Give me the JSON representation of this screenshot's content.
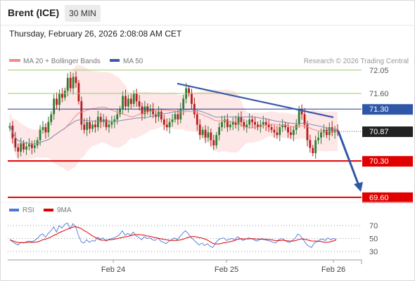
{
  "header": {
    "instrument": "Brent (ICE)",
    "timeframe": "30 MIN",
    "datetime": "Thursday, February 26, 2026 2:08:08 AM CET"
  },
  "legend": {
    "ma20_label": "MA 20 + Bollinger Bands",
    "ma50_label": "MA 50",
    "credit": "Research © 2026 Trading Central",
    "rsi_label": "RSI",
    "ma9_label": "9MA"
  },
  "colors": {
    "up_candle": "#2e7d32",
    "down_candle": "#b71c1c",
    "bollinger_fill": "#fde3e3",
    "ma20": "#f28b82",
    "ma50": "#7a8fb5",
    "trendline": "#3b5ba9",
    "resistance": "#1f3f8f",
    "support": "#e00000",
    "last_price_bg": "#222222",
    "rsi_line": "#4a78d9",
    "rsi_ma": "#e00000",
    "green_level": "#9ccc65"
  },
  "chart_data": [
    {
      "type": "candlestick",
      "x_ticks": [
        "Feb 24",
        "Feb 25",
        "Feb 26"
      ],
      "y_levels": [
        {
          "value": 72.05,
          "label": "72.05",
          "style": "green-line"
        },
        {
          "value": 71.6,
          "label": "71.60",
          "style": "green-line"
        },
        {
          "value": 71.3,
          "label": "71.30",
          "style": "blue-resistance"
        },
        {
          "value": 70.87,
          "label": "70.87",
          "style": "last-price"
        },
        {
          "value": 70.3,
          "label": "70.30",
          "style": "red-support"
        },
        {
          "value": 69.6,
          "label": "69.60",
          "style": "red-support"
        }
      ],
      "last_price": 70.87,
      "ylim": [
        69.45,
        72.25
      ],
      "closes": [
        70.98,
        70.74,
        70.56,
        70.48,
        70.64,
        70.52,
        70.58,
        70.62,
        70.55,
        70.6,
        70.7,
        70.9,
        70.95,
        70.85,
        71.05,
        71.2,
        71.5,
        71.38,
        71.6,
        71.52,
        71.65,
        71.9,
        71.7,
        71.92,
        71.8,
        71.45,
        71.0,
        70.9,
        71.05,
        70.92,
        71.0,
        70.95,
        71.15,
        71.05,
        71.1,
        70.95,
        71.0,
        71.05,
        71.1,
        71.2,
        71.3,
        71.55,
        71.35,
        71.5,
        71.4,
        71.6,
        71.45,
        71.35,
        71.2,
        71.35,
        71.25,
        71.3,
        71.2,
        71.15,
        71.25,
        71.1,
        71.0,
        70.95,
        71.05,
        71.1,
        71.2,
        71.1,
        71.3,
        71.5,
        71.7,
        71.6,
        71.4,
        71.2,
        71.0,
        70.8,
        70.9,
        70.75,
        70.85,
        70.7,
        70.6,
        70.8,
        70.95,
        71.05,
        71.1,
        70.95,
        71.0,
        71.05,
        71.0,
        71.15,
        71.05,
        70.95,
        71.0,
        71.1,
        71.05,
        71.0,
        70.95,
        71.0,
        71.05,
        71.0,
        70.95,
        70.9,
        70.85,
        70.8,
        70.95,
        71.0,
        70.95,
        70.85,
        70.8,
        70.9,
        71.0,
        71.3,
        71.2,
        71.0,
        70.7,
        70.55,
        70.45,
        70.7,
        70.75,
        70.85,
        70.9,
        70.8,
        70.95,
        70.85,
        70.9,
        70.87
      ]
    },
    {
      "type": "line",
      "name": "RSI",
      "y_ticks": [
        70,
        50,
        30
      ],
      "ylim": [
        20,
        80
      ],
      "values": [
        48,
        45,
        42,
        40,
        44,
        43,
        45,
        46,
        45,
        47,
        50,
        55,
        57,
        52,
        58,
        62,
        68,
        60,
        70,
        66,
        72,
        74,
        65,
        73,
        68,
        55,
        45,
        43,
        48,
        44,
        47,
        46,
        52,
        49,
        51,
        46,
        48,
        50,
        51,
        53,
        56,
        62,
        55,
        58,
        55,
        60,
        54,
        52,
        48,
        53,
        50,
        51,
        48,
        47,
        51,
        46,
        44,
        42,
        46,
        48,
        51,
        48,
        53,
        58,
        62,
        58,
        52,
        48,
        44,
        40,
        43,
        39,
        42,
        38,
        36,
        43,
        48,
        50,
        51,
        47,
        49,
        50,
        48,
        53,
        50,
        47,
        49,
        51,
        50,
        48,
        46,
        48,
        50,
        48,
        47,
        46,
        44,
        43,
        48,
        50,
        48,
        45,
        44,
        47,
        50,
        57,
        54,
        48,
        42,
        38,
        36,
        43,
        45,
        48,
        49,
        47,
        51,
        48,
        50,
        49
      ]
    }
  ]
}
